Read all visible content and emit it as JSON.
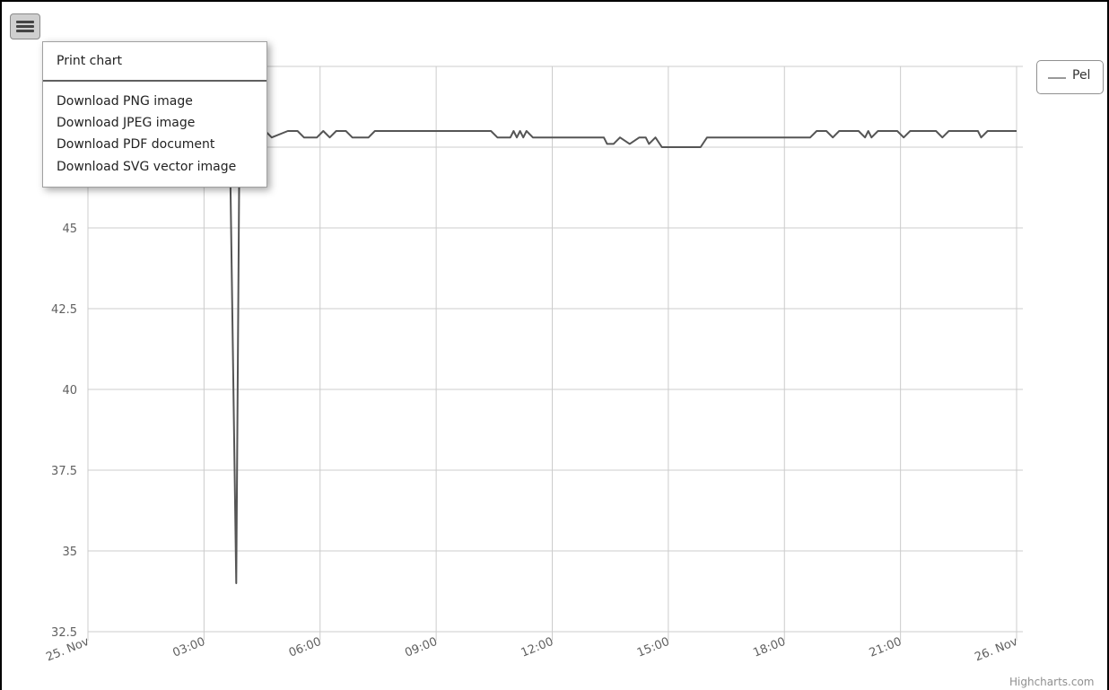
{
  "export_menu": {
    "items": [
      "Print chart",
      "Download PNG image",
      "Download JPEG image",
      "Download PDF document",
      "Download SVG vector image"
    ]
  },
  "credits": "Highcharts.com",
  "colors": {
    "series": "#555555",
    "grid": "#cccccc",
    "axis_text": "#606060",
    "legend_symbol": "#999999"
  },
  "chart_data": {
    "type": "line",
    "title": "",
    "xlabel": "",
    "ylabel": "",
    "x_tick_labels": [
      "25. Nov",
      "03:00",
      "06:00",
      "09:00",
      "12:00",
      "15:00",
      "18:00",
      "21:00",
      "26. Nov"
    ],
    "y_ticks": [
      32.5,
      35,
      37.5,
      40,
      42.5,
      45
    ],
    "xlim": [
      "2023-11-25 00:00",
      "2023-11-26 00:00"
    ],
    "ylim": [
      32.5,
      50
    ],
    "legend_placement": "top-right",
    "grid": true,
    "series": [
      {
        "name": "Pel",
        "points": [
          [
            "03:40",
            47.8
          ],
          [
            "03:50",
            34.0
          ],
          [
            "03:55",
            47.8
          ],
          [
            "04:10",
            47.8
          ],
          [
            "04:20",
            48.0
          ],
          [
            "04:35",
            48.0
          ],
          [
            "04:45",
            47.8
          ],
          [
            "05:10",
            48.0
          ],
          [
            "05:25",
            48.0
          ],
          [
            "05:35",
            47.8
          ],
          [
            "05:55",
            47.8
          ],
          [
            "06:05",
            48.0
          ],
          [
            "06:15",
            47.8
          ],
          [
            "06:25",
            48.0
          ],
          [
            "06:40",
            48.0
          ],
          [
            "06:50",
            47.8
          ],
          [
            "07:15",
            47.8
          ],
          [
            "07:25",
            48.0
          ],
          [
            "10:25",
            48.0
          ],
          [
            "10:35",
            47.8
          ],
          [
            "10:55",
            47.8
          ],
          [
            "11:00",
            48.0
          ],
          [
            "11:05",
            47.8
          ],
          [
            "11:10",
            48.0
          ],
          [
            "11:15",
            47.8
          ],
          [
            "11:20",
            48.0
          ],
          [
            "11:30",
            47.8
          ],
          [
            "13:20",
            47.8
          ],
          [
            "13:25",
            47.6
          ],
          [
            "13:35",
            47.6
          ],
          [
            "13:45",
            47.8
          ],
          [
            "14:00",
            47.6
          ],
          [
            "14:15",
            47.8
          ],
          [
            "14:25",
            47.8
          ],
          [
            "14:30",
            47.6
          ],
          [
            "14:40",
            47.8
          ],
          [
            "14:50",
            47.5
          ],
          [
            "15:50",
            47.5
          ],
          [
            "16:00",
            47.8
          ],
          [
            "18:40",
            47.8
          ],
          [
            "18:50",
            48.0
          ],
          [
            "19:05",
            48.0
          ],
          [
            "19:15",
            47.8
          ],
          [
            "19:25",
            48.0
          ],
          [
            "19:55",
            48.0
          ],
          [
            "20:05",
            47.8
          ],
          [
            "20:10",
            48.0
          ],
          [
            "20:15",
            47.8
          ],
          [
            "20:25",
            48.0
          ],
          [
            "20:55",
            48.0
          ],
          [
            "21:05",
            47.8
          ],
          [
            "21:15",
            48.0
          ],
          [
            "21:55",
            48.0
          ],
          [
            "22:05",
            47.8
          ],
          [
            "22:15",
            48.0
          ],
          [
            "23:00",
            48.0
          ],
          [
            "23:05",
            47.8
          ],
          [
            "23:15",
            48.0
          ],
          [
            "24:00",
            48.0
          ]
        ]
      }
    ]
  }
}
